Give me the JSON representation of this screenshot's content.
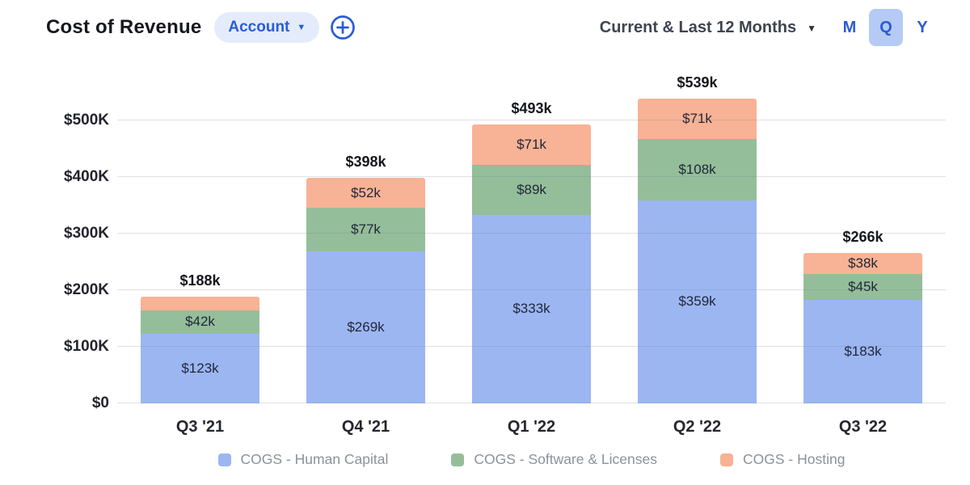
{
  "header": {
    "title": "Cost of Revenue",
    "account_selector": {
      "label": "Account",
      "caret": "▼"
    },
    "add_button": {
      "icon": "plus-circle"
    },
    "range_selector": {
      "label": "Current & Last 12 Months",
      "caret": "▼"
    },
    "period_toggle": {
      "options": [
        "M",
        "Q",
        "Y"
      ],
      "selected": "Q"
    }
  },
  "colors": {
    "accent_blue": "#2a5cd7",
    "toggle_selected_bg": "#b6caf6",
    "pill_bg": "#e4ecfb",
    "bar_blue": "#9cb6f2",
    "bar_green": "#94be9a",
    "bar_orange": "#f8b295",
    "grid": "#e1e2e6",
    "text_dark": "#17181f",
    "text_gray": "#8d919c"
  },
  "chart_data": {
    "type": "bar",
    "stacked": true,
    "title": "Cost of Revenue",
    "xlabel": "",
    "ylabel": "",
    "unit_suffix": "k",
    "categories": [
      "Q3 '21",
      "Q4 '21",
      "Q1 '22",
      "Q2 '22",
      "Q3 '22"
    ],
    "totals_labels": [
      "$188k",
      "$398k",
      "$493k",
      "$539k",
      "$266k"
    ],
    "series": [
      {
        "name": "COGS - Human Capital",
        "color": "#9cb6f2",
        "values": [
          123,
          269,
          333,
          359,
          183
        ],
        "labels": [
          "$123k",
          "$269k",
          "$333k",
          "$359k",
          "$183k"
        ]
      },
      {
        "name": "COGS - Software & Licenses",
        "color": "#94be9a",
        "values": [
          42,
          77,
          89,
          108,
          45
        ],
        "labels": [
          "$42k",
          "$77k",
          "$89k",
          "$108k",
          "$45k"
        ]
      },
      {
        "name": "COGS - Hosting",
        "color": "#f8b295",
        "values": [
          23,
          52,
          71,
          71,
          38
        ],
        "labels": [
          null,
          "$52k",
          "$71k",
          "$71k",
          "$38k"
        ]
      }
    ],
    "yticks": [
      "$0",
      "$100K",
      "$200K",
      "$300K",
      "$400K",
      "$500K"
    ],
    "ytick_step": 100,
    "ylim": [
      0,
      540
    ],
    "grid": true,
    "legend_position": "bottom"
  }
}
